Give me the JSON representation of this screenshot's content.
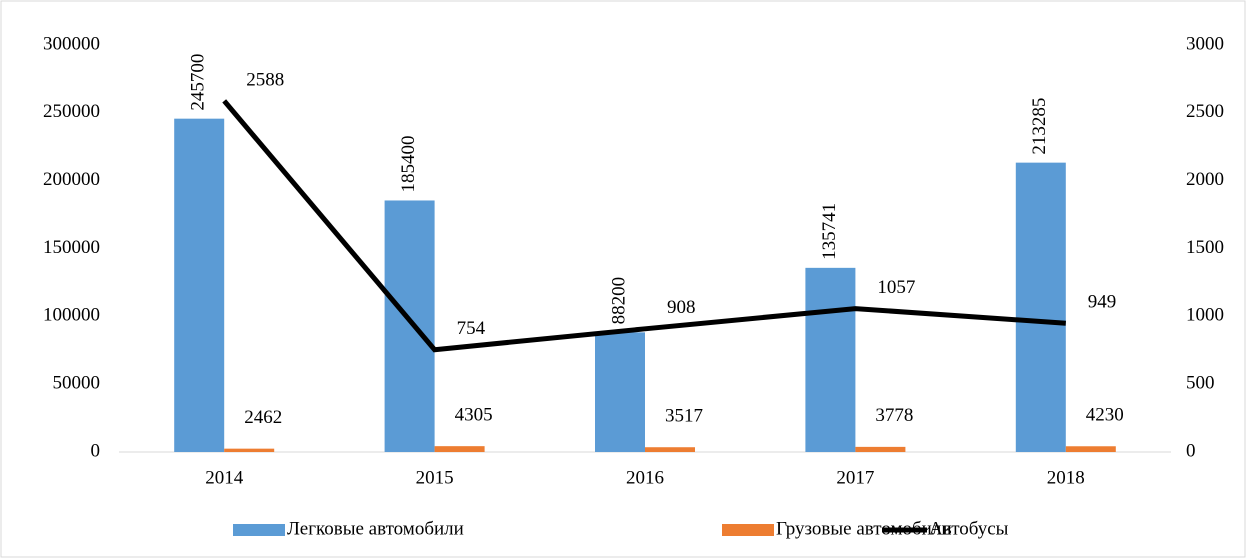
{
  "chart_data": {
    "type": "bar",
    "categories": [
      "2014",
      "2015",
      "2016",
      "2017",
      "2018"
    ],
    "series": [
      {
        "name": "Легковые автомобили",
        "color": "#5b9bd5",
        "values": [
          245700,
          185400,
          88200,
          135741,
          213285
        ]
      },
      {
        "name": "Грузовые автомобили",
        "color": "#ed7d31",
        "values": [
          2462,
          4305,
          3517,
          3778,
          4230
        ]
      },
      {
        "name": "Автобусы",
        "color": "#000000",
        "type": "line",
        "axis": "y2",
        "values": [
          2588,
          754,
          908,
          1057,
          949
        ]
      }
    ],
    "ylim": [
      0,
      300000
    ],
    "yticks": [
      0,
      50000,
      100000,
      150000,
      200000,
      250000,
      300000
    ],
    "y2lim": [
      0,
      3000
    ],
    "y2ticks": [
      0,
      500,
      1000,
      1500,
      2000,
      2500,
      3000
    ],
    "legend": "bottom",
    "grid": false
  }
}
